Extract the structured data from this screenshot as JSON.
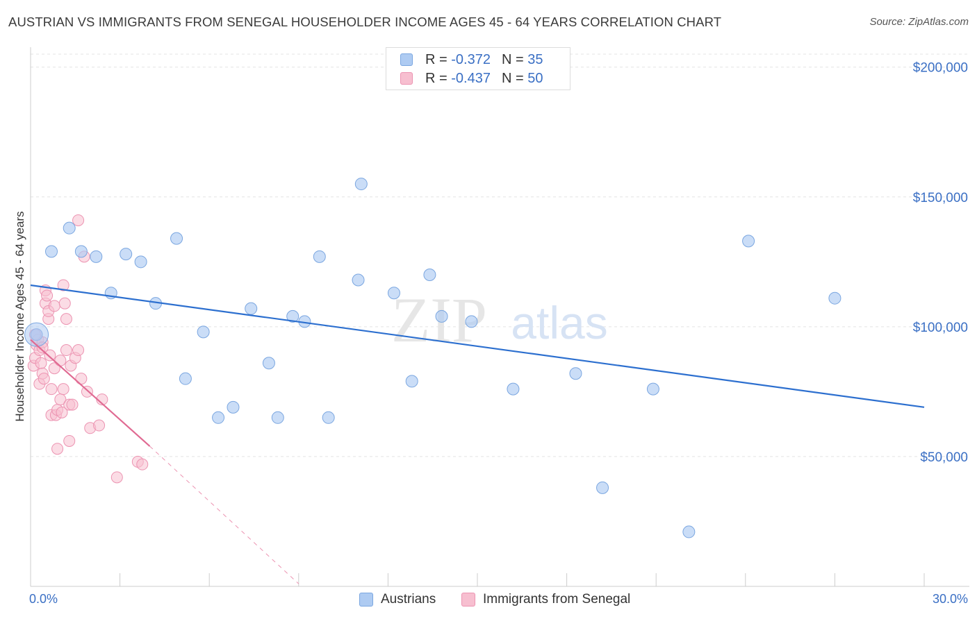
{
  "header": {
    "title": "AUSTRIAN VS IMMIGRANTS FROM SENEGAL HOUSEHOLDER INCOME AGES 45 - 64 YEARS CORRELATION CHART",
    "source": "Source: ZipAtlas.com"
  },
  "watermark": {
    "zip": "ZIP",
    "atlas": "atlas"
  },
  "legend": {
    "r_label": "R =",
    "n_label": "N =",
    "austrians": {
      "r": "-0.372",
      "n": "35"
    },
    "senegal": {
      "r": "-0.437",
      "n": "50"
    }
  },
  "colors": {
    "austrians_fill": "#aecbf2",
    "austrians_stroke": "#7aa6e0",
    "austrians_line": "#2c6fcf",
    "senegal_fill": "#f7bfd0",
    "senegal_stroke": "#ec93b1",
    "senegal_line": "#e06a92",
    "tick_label": "#3a6fc4",
    "grid": "#e3e3e3"
  },
  "chart_data": {
    "type": "scatter",
    "title": "AUSTRIAN VS IMMIGRANTS FROM SENEGAL HOUSEHOLDER INCOME AGES 45 - 64 YEARS CORRELATION CHART",
    "xlabel": "",
    "ylabel": "Householder Income Ages 45 - 64 years",
    "xlim": [
      0,
      30
    ],
    "ylim": [
      0,
      205000
    ],
    "x_tick_labels": [
      "0.0%",
      "30.0%"
    ],
    "y_ticks": [
      50000,
      100000,
      150000,
      200000
    ],
    "y_tick_labels": [
      "$50,000",
      "$100,000",
      "$150,000",
      "$200,000"
    ],
    "series": [
      {
        "name": "Austrians",
        "points": [
          [
            0.2,
            97000
          ],
          [
            0.7,
            129000
          ],
          [
            1.3,
            138000
          ],
          [
            1.7,
            129000
          ],
          [
            2.2,
            127000
          ],
          [
            2.7,
            113000
          ],
          [
            3.2,
            128000
          ],
          [
            3.7,
            125000
          ],
          [
            4.2,
            109000
          ],
          [
            4.9,
            134000
          ],
          [
            5.2,
            80000
          ],
          [
            5.8,
            98000
          ],
          [
            6.3,
            65000
          ],
          [
            6.8,
            69000
          ],
          [
            7.4,
            107000
          ],
          [
            8.0,
            86000
          ],
          [
            8.3,
            65000
          ],
          [
            8.8,
            104000
          ],
          [
            9.2,
            102000
          ],
          [
            9.7,
            127000
          ],
          [
            10.0,
            65000
          ],
          [
            11.0,
            118000
          ],
          [
            11.1,
            155000
          ],
          [
            12.2,
            113000
          ],
          [
            12.8,
            79000
          ],
          [
            13.4,
            120000
          ],
          [
            13.8,
            104000
          ],
          [
            14.8,
            102000
          ],
          [
            16.2,
            76000
          ],
          [
            18.3,
            82000
          ],
          [
            19.2,
            38000
          ],
          [
            20.9,
            76000
          ],
          [
            22.1,
            21000
          ],
          [
            24.1,
            133000
          ],
          [
            27.0,
            111000
          ]
        ]
      },
      {
        "name": "Immigrants from Senegal",
        "points": [
          [
            0.1,
            85000
          ],
          [
            0.15,
            88000
          ],
          [
            0.2,
            93000
          ],
          [
            0.2,
            97000
          ],
          [
            0.25,
            95000
          ],
          [
            0.3,
            91000
          ],
          [
            0.3,
            78000
          ],
          [
            0.35,
            86000
          ],
          [
            0.4,
            82000
          ],
          [
            0.4,
            94000
          ],
          [
            0.45,
            80000
          ],
          [
            0.5,
            114000
          ],
          [
            0.5,
            109000
          ],
          [
            0.55,
            112000
          ],
          [
            0.6,
            103000
          ],
          [
            0.6,
            106000
          ],
          [
            0.65,
            89000
          ],
          [
            0.7,
            76000
          ],
          [
            0.7,
            66000
          ],
          [
            0.8,
            84000
          ],
          [
            0.8,
            108000
          ],
          [
            0.85,
            66000
          ],
          [
            0.9,
            53000
          ],
          [
            0.9,
            68000
          ],
          [
            1.0,
            72000
          ],
          [
            1.0,
            87000
          ],
          [
            1.05,
            67000
          ],
          [
            1.1,
            76000
          ],
          [
            1.1,
            116000
          ],
          [
            1.15,
            109000
          ],
          [
            1.2,
            103000
          ],
          [
            1.2,
            91000
          ],
          [
            1.3,
            56000
          ],
          [
            1.3,
            70000
          ],
          [
            1.35,
            85000
          ],
          [
            1.4,
            70000
          ],
          [
            1.5,
            88000
          ],
          [
            1.6,
            91000
          ],
          [
            1.6,
            141000
          ],
          [
            1.7,
            80000
          ],
          [
            1.8,
            127000
          ],
          [
            1.9,
            75000
          ],
          [
            2.0,
            61000
          ],
          [
            2.3,
            62000
          ],
          [
            2.4,
            72000
          ],
          [
            2.9,
            42000
          ],
          [
            3.6,
            48000
          ],
          [
            3.75,
            47000
          ],
          [
            0.15,
            97000
          ],
          [
            0.4,
            92000
          ]
        ]
      }
    ],
    "trend_lines": [
      {
        "name": "Austrians",
        "x": [
          0,
          30
        ],
        "y": [
          116000,
          69000
        ]
      },
      {
        "name": "Immigrants from Senegal",
        "x": [
          0,
          4
        ],
        "y": [
          95000,
          54000
        ],
        "dashed_extension_to": [
          9,
          1000
        ]
      }
    ],
    "legend_position": "bottom-center"
  }
}
